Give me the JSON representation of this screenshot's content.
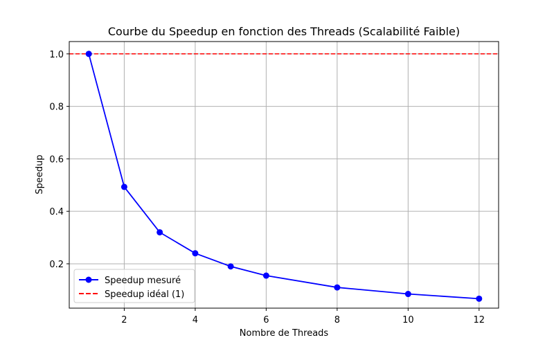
{
  "chart_data": {
    "type": "line",
    "title": "Courbe du Speedup en fonction des Threads (Scalabilité Faible)",
    "xlabel": "Nombre de Threads",
    "ylabel": "Speedup",
    "xlim": [
      0.45,
      12.55
    ],
    "ylim": [
      0.031,
      1.047
    ],
    "xticks": [
      2,
      4,
      6,
      8,
      10,
      12
    ],
    "xtick_labels": [
      "2",
      "4",
      "6",
      "8",
      "10",
      "12"
    ],
    "yticks": [
      0.2,
      0.4,
      0.6,
      0.8,
      1.0
    ],
    "ytick_labels": [
      "0.2",
      "0.4",
      "0.6",
      "0.8",
      "1.0"
    ],
    "grid": true,
    "legend_position": "bottom-left",
    "series": [
      {
        "name": "Speedup mesuré",
        "style": "solid-line-circle-markers",
        "color": "#0000ff",
        "x": [
          1,
          2,
          3,
          4,
          5,
          6,
          8,
          10,
          12
        ],
        "y": [
          1.0,
          0.493,
          0.32,
          0.24,
          0.19,
          0.155,
          0.11,
          0.085,
          0.067
        ]
      },
      {
        "name": "Speedup idéal (1)",
        "style": "dashed-horizontal-line",
        "color": "#ff0000",
        "y": 1.0
      }
    ]
  }
}
